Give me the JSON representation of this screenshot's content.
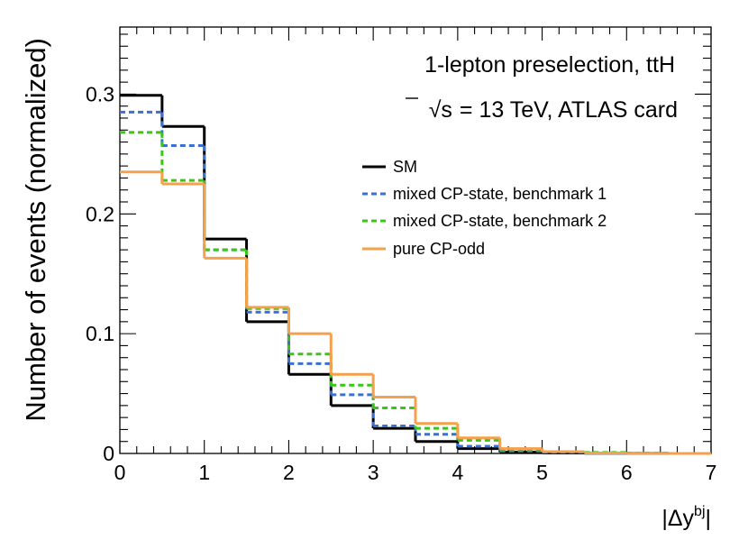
{
  "chart_data": {
    "type": "step",
    "title": "",
    "xlabel": "|Δy^{bj}|",
    "xlabel_parts": {
      "pipe_open": "|Δ",
      "y": "y",
      "sup": "bj",
      "pipe_close": "|"
    },
    "ylabel": "Number of events (normalized)",
    "xlim": [
      0,
      7
    ],
    "ylim": [
      0,
      0.356
    ],
    "bin_edges": [
      0,
      0.5,
      1,
      1.5,
      2,
      2.5,
      3,
      3.5,
      4,
      4.5,
      5,
      5.5,
      6,
      6.5,
      7
    ],
    "x_ticks": [
      "0",
      "1",
      "2",
      "3",
      "4",
      "5",
      "6",
      "7"
    ],
    "y_ticks": [
      "0",
      "0.1",
      "0.2",
      "0.3"
    ],
    "annotations": {
      "line1": "1-lepton preselection, ttH",
      "sqrt": "√",
      "s": "s",
      "line2_rest": "= 13 TeV, ATLAS card"
    },
    "legend_position": "top-right",
    "series": [
      {
        "name": "SM",
        "color": "#000000",
        "style": "solid",
        "values": [
          0.299,
          0.273,
          0.179,
          0.11,
          0.066,
          0.04,
          0.021,
          0.01,
          0.004,
          0.001,
          0.0005,
          0.0002,
          0.0001,
          0.0
        ]
      },
      {
        "name": "mixed CP-state, benchmark 1",
        "color": "#3b70d1",
        "style": "dashed",
        "values": [
          0.285,
          0.257,
          0.17,
          0.118,
          0.075,
          0.049,
          0.023,
          0.016,
          0.006,
          0.002,
          0.001,
          0.0003,
          0.0001,
          0.0
        ]
      },
      {
        "name": "mixed CP-state, benchmark 2",
        "color": "#3cc418",
        "style": "dashed",
        "values": [
          0.268,
          0.228,
          0.17,
          0.121,
          0.083,
          0.057,
          0.038,
          0.021,
          0.011,
          0.003,
          0.0015,
          0.0008,
          0.0003,
          0.0
        ]
      },
      {
        "name": "pure CP-odd",
        "color": "#f5a04b",
        "style": "solid",
        "values": [
          0.235,
          0.225,
          0.163,
          0.122,
          0.1,
          0.066,
          0.047,
          0.025,
          0.013,
          0.004,
          0.0015,
          0.0004,
          0.0001,
          0.0
        ]
      }
    ]
  }
}
